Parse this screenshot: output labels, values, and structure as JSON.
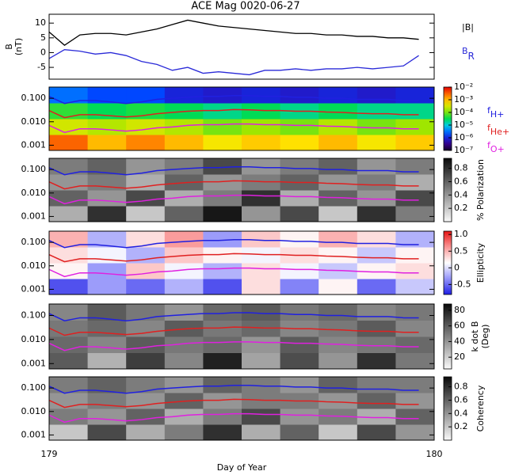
{
  "chart_data": [
    {
      "type": "line",
      "title": "ACE Mag 0020-06-27",
      "ylabel": "B",
      "yunit": "(nT)",
      "x": [
        179,
        179.04,
        179.08,
        179.12,
        179.16,
        179.2,
        179.24,
        179.28,
        179.32,
        179.36,
        179.4,
        179.44,
        179.48,
        179.52,
        179.56,
        179.6,
        179.64,
        179.68,
        179.72,
        179.76,
        179.8,
        179.84,
        179.88,
        179.92,
        179.96
      ],
      "xlim": [
        179,
        180
      ],
      "ylim": [
        -9,
        13
      ],
      "yticks": [
        -5,
        0,
        5,
        10
      ],
      "series": [
        {
          "name": "|B|",
          "color": "#000000",
          "values": [
            7,
            2.5,
            6,
            6.5,
            6.5,
            6,
            7,
            8,
            9.5,
            11,
            10,
            9,
            8.5,
            8,
            7.5,
            7,
            6.5,
            6.5,
            6,
            6,
            5.5,
            5.5,
            5,
            5,
            4.5
          ]
        },
        {
          "name": "B",
          "subscript": "R",
          "color": "#2a2ad8",
          "values": [
            -2,
            1,
            0.5,
            -0.5,
            0,
            -1,
            -3,
            -4,
            -6,
            -5,
            -7,
            -6.5,
            -7,
            -7.5,
            -6,
            -6,
            -5.5,
            -6,
            -5.5,
            -5.5,
            -5,
            -5.5,
            -5,
            -4.5,
            -1
          ]
        }
      ]
    },
    {
      "type": "heatmap",
      "colormap": "rainbow",
      "log_scale": true,
      "ylim": [
        0.0006,
        0.3
      ],
      "yticks": [
        {
          "value": 0.001,
          "label": "0.001"
        },
        {
          "value": 0.01,
          "label": "0.010"
        },
        {
          "value": 0.1,
          "label": "0.100"
        }
      ],
      "clim": [
        1e-07,
        0.01
      ],
      "clog": true,
      "cticks": [
        {
          "value": 0.01,
          "label": "10⁻²"
        },
        {
          "value": 0.001,
          "label": "10⁻³"
        },
        {
          "value": 0.0001,
          "label": "10⁻⁴"
        },
        {
          "value": 1e-05,
          "label": "10⁻⁵"
        },
        {
          "value": 1e-06,
          "label": "10⁻⁶"
        },
        {
          "value": 1e-07,
          "label": "10⁻⁷"
        }
      ],
      "matrix": [
        [
          0.003,
          0.001,
          0.002,
          0.001,
          0.0005,
          0.0008,
          0.0006,
          0.001,
          0.0005,
          0.0008
        ],
        [
          0.0003,
          0.0002,
          0.0003,
          0.0002,
          0.0001,
          0.00015,
          0.0001,
          0.0002,
          0.0001,
          0.00015
        ],
        [
          5e-05,
          3e-05,
          4e-05,
          3e-05,
          2e-05,
          3e-05,
          2e-05,
          3e-05,
          2e-05,
          2e-05
        ],
        [
          3e-06,
          2e-06,
          2e-06,
          1e-06,
          8e-07,
          1e-06,
          8e-07,
          1e-06,
          8e-07,
          1e-06
        ]
      ],
      "series": [
        {
          "name": "f",
          "subscript": "H+",
          "color": "#2020e0",
          "values": [
            0.12,
            0.06,
            0.08,
            0.08,
            0.07,
            0.06,
            0.07,
            0.09,
            0.1,
            0.11,
            0.12,
            0.12,
            0.13,
            0.13,
            0.12,
            0.12,
            0.11,
            0.11,
            0.1,
            0.1,
            0.09,
            0.09,
            0.09,
            0.08,
            0.08
          ]
        },
        {
          "name": "f",
          "subscript": "He+",
          "color": "#e02020",
          "values": [
            0.03,
            0.015,
            0.02,
            0.02,
            0.018,
            0.016,
            0.018,
            0.022,
            0.025,
            0.028,
            0.03,
            0.03,
            0.033,
            0.032,
            0.03,
            0.03,
            0.028,
            0.028,
            0.026,
            0.025,
            0.023,
            0.022,
            0.022,
            0.02,
            0.02
          ]
        },
        {
          "name": "f",
          "subscript": "O+",
          "color": "#e020e0",
          "values": [
            0.007,
            0.0035,
            0.005,
            0.005,
            0.0045,
            0.004,
            0.0045,
            0.0055,
            0.006,
            0.007,
            0.0075,
            0.0075,
            0.008,
            0.008,
            0.0075,
            0.0075,
            0.007,
            0.007,
            0.0065,
            0.0063,
            0.0058,
            0.0055,
            0.0055,
            0.005,
            0.005
          ]
        }
      ]
    },
    {
      "type": "heatmap",
      "colormap": "gray",
      "log_scale": true,
      "ylim": [
        0.0006,
        0.3
      ],
      "yticks": [
        {
          "value": 0.001,
          "label": "0.001"
        },
        {
          "value": 0.01,
          "label": "0.010"
        },
        {
          "value": 0.1,
          "label": "0.100"
        }
      ],
      "clim": [
        0,
        0.95
      ],
      "cticks": [
        0.2,
        0.4,
        0.6,
        0.8
      ],
      "clabel": "% Polarization",
      "matrix": [
        [
          0.3,
          0.8,
          0.2,
          0.6,
          0.9,
          0.4,
          0.7,
          0.2,
          0.8,
          0.5
        ],
        [
          0.6,
          0.4,
          0.7,
          0.3,
          0.5,
          0.8,
          0.3,
          0.6,
          0.4,
          0.7
        ],
        [
          0.4,
          0.5,
          0.3,
          0.6,
          0.4,
          0.5,
          0.6,
          0.4,
          0.5,
          0.3
        ],
        [
          0.5,
          0.6,
          0.4,
          0.5,
          0.7,
          0.4,
          0.5,
          0.6,
          0.4,
          0.5
        ]
      ]
    },
    {
      "type": "heatmap",
      "colormap": "bwr",
      "log_scale": true,
      "ylim": [
        0.0006,
        0.3
      ],
      "yticks": [
        {
          "value": 0.001,
          "label": "0.001"
        },
        {
          "value": 0.01,
          "label": "0.010"
        },
        {
          "value": 0.1,
          "label": "0.100"
        }
      ],
      "clim": [
        -0.8,
        1.1
      ],
      "cticks": [
        -0.5,
        0,
        0.5,
        {
          "value": 1,
          "label": "1.0"
        }
      ],
      "clabel": "Ellipticity",
      "matrix": [
        [
          -0.6,
          -0.3,
          -0.5,
          -0.2,
          -0.6,
          0.3,
          -0.4,
          0.2,
          -0.5,
          -0.1
        ],
        [
          0.2,
          -0.3,
          0.4,
          0.1,
          -0.2,
          0.3,
          0.1,
          -0.1,
          0.2,
          0.3
        ],
        [
          0.3,
          0.1,
          -0.2,
          0.4,
          0.2,
          0.1,
          0.3,
          0.2,
          -0.1,
          0.2
        ],
        [
          0.5,
          -0.2,
          0.3,
          0.6,
          -0.3,
          0.4,
          0.2,
          0.5,
          0.3,
          -0.2
        ]
      ]
    },
    {
      "type": "heatmap",
      "colormap": "gray",
      "log_scale": true,
      "ylim": [
        0.0006,
        0.3
      ],
      "yticks": [
        {
          "value": 0.001,
          "label": "0.001"
        },
        {
          "value": 0.01,
          "label": "0.010"
        },
        {
          "value": 0.1,
          "label": "0.100"
        }
      ],
      "clim": [
        5,
        88
      ],
      "cticks": [
        20,
        40,
        60,
        80
      ],
      "clabel": "k dot B",
      "cunit": "(Deg)",
      "matrix": [
        [
          60,
          30,
          70,
          45,
          80,
          35,
          65,
          40,
          75,
          50
        ],
        [
          55,
          45,
          60,
          50,
          55,
          40,
          60,
          45,
          50,
          55
        ],
        [
          50,
          55,
          45,
          60,
          50,
          55,
          45,
          50,
          60,
          45
        ],
        [
          45,
          60,
          50,
          40,
          55,
          60,
          50,
          55,
          45,
          50
        ]
      ]
    },
    {
      "type": "heatmap",
      "colormap": "gray",
      "log_scale": true,
      "ylim": [
        0.0006,
        0.3
      ],
      "yticks": [
        {
          "value": 0.001,
          "label": "0.001"
        },
        {
          "value": 0.01,
          "label": "0.010"
        },
        {
          "value": 0.1,
          "label": "0.100"
        }
      ],
      "clim": [
        0,
        0.95
      ],
      "cticks": [
        0.2,
        0.4,
        0.6,
        0.8
      ],
      "clabel": "Coherency",
      "xticks": [
        179,
        180
      ],
      "xlabel": "Day of Year",
      "matrix": [
        [
          0.2,
          0.7,
          0.3,
          0.5,
          0.8,
          0.3,
          0.6,
          0.2,
          0.7,
          0.4
        ],
        [
          0.5,
          0.4,
          0.6,
          0.3,
          0.5,
          0.7,
          0.4,
          0.5,
          0.3,
          0.6
        ],
        [
          0.4,
          0.5,
          0.4,
          0.6,
          0.4,
          0.5,
          0.5,
          0.4,
          0.6,
          0.4
        ],
        [
          0.5,
          0.6,
          0.5,
          0.4,
          0.6,
          0.5,
          0.4,
          0.6,
          0.5,
          0.5
        ]
      ]
    }
  ]
}
